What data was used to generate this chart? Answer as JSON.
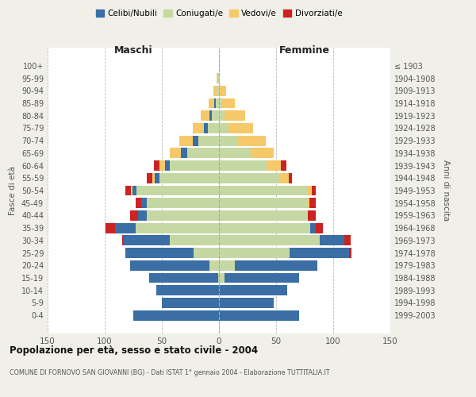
{
  "age_groups": [
    "0-4",
    "5-9",
    "10-14",
    "15-19",
    "20-24",
    "25-29",
    "30-34",
    "35-39",
    "40-44",
    "45-49",
    "50-54",
    "55-59",
    "60-64",
    "65-69",
    "70-74",
    "75-79",
    "80-84",
    "85-89",
    "90-94",
    "95-99",
    "100+"
  ],
  "birth_years": [
    "1999-2003",
    "1994-1998",
    "1989-1993",
    "1984-1988",
    "1979-1983",
    "1974-1978",
    "1969-1973",
    "1964-1968",
    "1959-1963",
    "1954-1958",
    "1949-1953",
    "1944-1948",
    "1939-1943",
    "1934-1938",
    "1929-1933",
    "1924-1928",
    "1919-1923",
    "1914-1918",
    "1909-1913",
    "1904-1908",
    "≤ 1903"
  ],
  "colors": {
    "celibi": "#3a6ea5",
    "coniugati": "#c5d8a4",
    "vedovi": "#f5c96a",
    "divorziati": "#cc2222"
  },
  "males": {
    "celibi": [
      75,
      50,
      55,
      60,
      70,
      60,
      40,
      18,
      8,
      5,
      4,
      4,
      4,
      5,
      5,
      3,
      2,
      1,
      0,
      0,
      0
    ],
    "coniugati": [
      0,
      0,
      0,
      1,
      8,
      22,
      43,
      73,
      63,
      63,
      72,
      52,
      43,
      28,
      18,
      10,
      6,
      3,
      2,
      1,
      0
    ],
    "vedovi": [
      0,
      0,
      0,
      0,
      0,
      0,
      0,
      0,
      0,
      0,
      1,
      2,
      5,
      10,
      12,
      10,
      8,
      5,
      3,
      1,
      0
    ],
    "divorziati": [
      0,
      0,
      0,
      0,
      0,
      0,
      2,
      8,
      7,
      5,
      5,
      5,
      5,
      0,
      0,
      0,
      0,
      0,
      0,
      0,
      0
    ]
  },
  "females": {
    "celibi": [
      70,
      48,
      60,
      65,
      72,
      52,
      22,
      5,
      0,
      0,
      0,
      0,
      0,
      0,
      0,
      0,
      0,
      0,
      0,
      0,
      0
    ],
    "coniugati": [
      0,
      0,
      0,
      5,
      14,
      62,
      88,
      80,
      78,
      78,
      78,
      53,
      42,
      28,
      16,
      8,
      5,
      2,
      1,
      0,
      0
    ],
    "vedovi": [
      0,
      0,
      0,
      0,
      0,
      0,
      0,
      0,
      0,
      1,
      3,
      8,
      12,
      20,
      25,
      22,
      18,
      12,
      5,
      1,
      1
    ],
    "divorziati": [
      0,
      0,
      0,
      0,
      0,
      2,
      5,
      6,
      7,
      6,
      4,
      3,
      5,
      0,
      0,
      0,
      0,
      0,
      0,
      0,
      0
    ]
  },
  "title": "Popolazione per età, sesso e stato civile - 2004",
  "subtitle": "COMUNE DI FORNOVO SAN GIOVANNI (BG) - Dati ISTAT 1° gennaio 2004 - Elaborazione TUTTITALIA.IT",
  "xlabel_left": "Maschi",
  "xlabel_right": "Femmine",
  "ylabel_left": "Fasce di età",
  "ylabel_right": "Anni di nascita",
  "xlim": 150,
  "background_color": "#f0f0e8",
  "plot_bg": "#ffffff",
  "grid_color": "#bbbbbb"
}
